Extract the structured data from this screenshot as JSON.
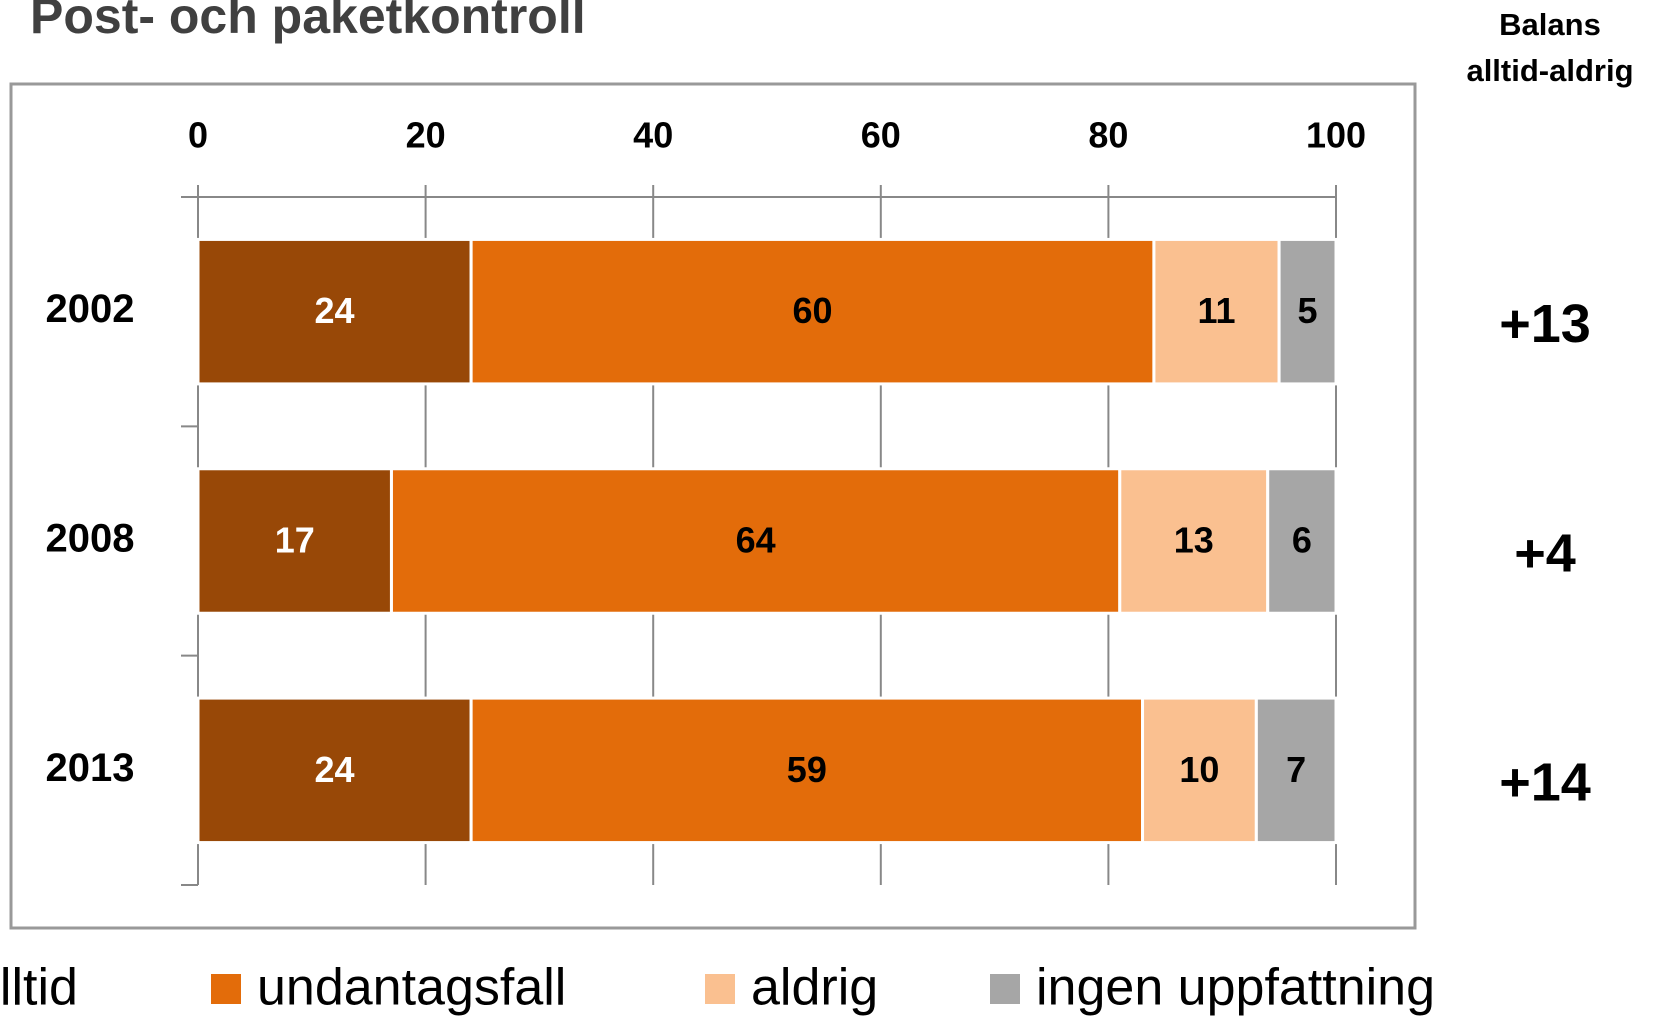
{
  "chart_data": {
    "type": "stacked_bar_horizontal",
    "title": "Post- och paketkontroll",
    "categories": [
      "2002",
      "2008",
      "2013"
    ],
    "series": [
      {
        "name": "alltid",
        "color": "#984807",
        "values": [
          24,
          17,
          24
        ]
      },
      {
        "name": "undantagsfall",
        "color": "#e36c0a",
        "values": [
          60,
          64,
          59
        ]
      },
      {
        "name": "aldrig",
        "color": "#fac090",
        "values": [
          11,
          13,
          10
        ]
      },
      {
        "name": "ingen uppfattning",
        "color": "#a6a6a6",
        "values": [
          5,
          6,
          7
        ]
      }
    ],
    "xlim": [
      0,
      100
    ],
    "xticks": [
      0,
      20,
      40,
      60,
      80,
      100
    ],
    "grid": true,
    "legend": "bottom",
    "balance_header": [
      "Balans",
      "alltid-aldrig"
    ],
    "balance_values": [
      "+13",
      "+4",
      "+14"
    ]
  }
}
